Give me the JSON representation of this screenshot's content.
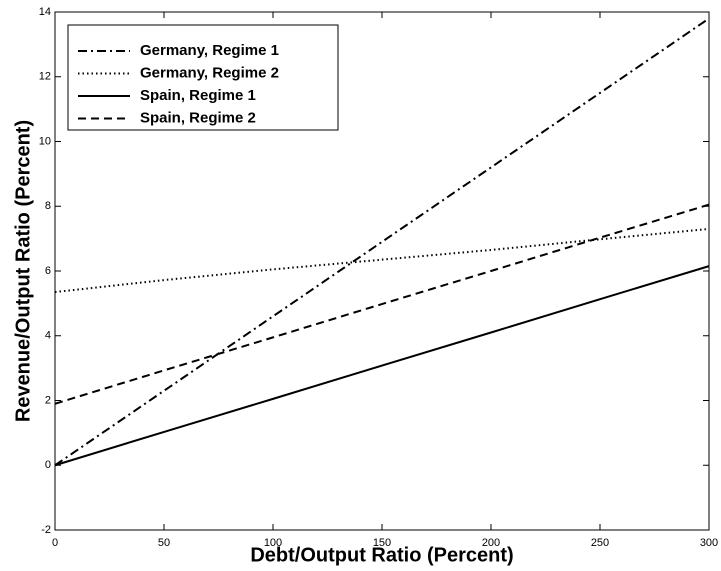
{
  "chart_data": {
    "type": "line",
    "xlabel": "Debt/Output Ratio (Percent)",
    "ylabel": "Revenue/Output Ratio (Percent)",
    "x": [
      0,
      50,
      100,
      150,
      200,
      250,
      300
    ],
    "xlim": [
      0,
      300
    ],
    "ylim": [
      -2,
      14
    ],
    "xticks": [
      0,
      50,
      100,
      150,
      200,
      250,
      300
    ],
    "yticks": [
      -2,
      0,
      2,
      4,
      6,
      8,
      10,
      12,
      14
    ],
    "legend": "upper-left",
    "series": [
      {
        "name": "Germany, Regime 1",
        "color": "#000000",
        "style": "dashdot",
        "values": [
          0,
          2.3,
          4.6,
          6.9,
          9.2,
          11.5,
          13.8
        ]
      },
      {
        "name": "Germany, Regime 2",
        "color": "#000000",
        "style": "dotted",
        "values": [
          5.35,
          5.72,
          6.05,
          6.35,
          6.65,
          6.98,
          7.3
        ]
      },
      {
        "name": "Spain, Regime 1",
        "color": "#000000",
        "style": "solid",
        "values": [
          0,
          1.03,
          2.05,
          3.08,
          4.1,
          5.13,
          6.15
        ]
      },
      {
        "name": "Spain, Regime 2",
        "color": "#000000",
        "style": "dashed",
        "values": [
          1.9,
          2.93,
          3.95,
          4.98,
          6,
          7.03,
          8.05
        ]
      }
    ]
  }
}
